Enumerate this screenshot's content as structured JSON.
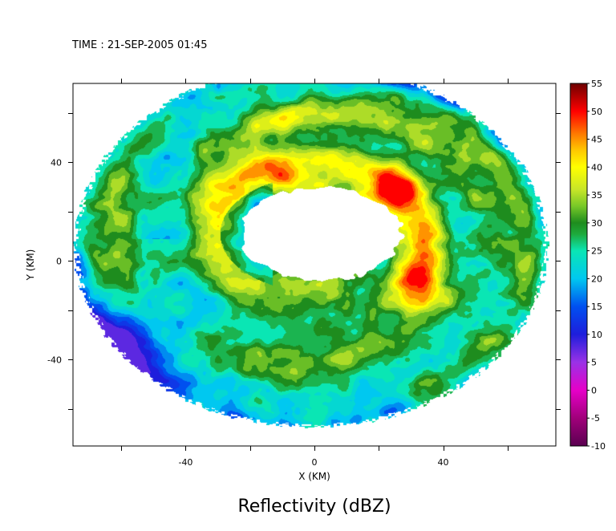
{
  "chart_data": {
    "type": "heatmap",
    "time_label": "TIME : 21-SEP-2005 01:45",
    "title": "Reflectivity (dBZ)",
    "xlabel": "X (KM)",
    "ylabel": "Y (KM)",
    "xlim": [
      -75,
      75
    ],
    "ylim": [
      -75,
      72
    ],
    "x_ticks": [
      -40,
      0,
      40
    ],
    "y_ticks": [
      40,
      0,
      -40
    ],
    "x_minor_ticks": [
      -60,
      -40,
      -20,
      0,
      20,
      40,
      60
    ],
    "y_minor_ticks": [
      60,
      40,
      20,
      0,
      -20,
      -40,
      -60
    ],
    "grid": false,
    "field": {
      "outer_radius_km": 73,
      "outer_center_km": [
        -1,
        6
      ],
      "inner_radius_x_km": 25,
      "inner_radius_y_km": 19,
      "inner_center_km": [
        2,
        11
      ],
      "features": [
        {
          "description": "inner eyewall ring",
          "radius_km": 34,
          "center_km": [
            2,
            9
          ],
          "peak_dbz": 45
        },
        {
          "description": "strong cell NE of eye",
          "x_km": 25,
          "y_km": 30,
          "peak_dbz": 48
        },
        {
          "description": "strong cell E of eye",
          "x_km": 30,
          "y_km": -8,
          "peak_dbz": 47
        },
        {
          "description": "strong cell N of eye",
          "x_km": -10,
          "y_km": 33,
          "peak_dbz": 46
        },
        {
          "description": "outer rainband",
          "radius_km": 52,
          "peak_dbz": 42
        },
        {
          "description": "low reflectivity SW quadrant",
          "x_km": -55,
          "y_km": -30,
          "min_dbz": 10
        }
      ]
    },
    "colorbar": {
      "ticks": [
        55,
        50,
        45,
        40,
        35,
        30,
        25,
        20,
        15,
        10,
        5,
        0,
        -5,
        -10
      ],
      "range": [
        -10,
        55
      ],
      "colors": [
        {
          "value": -10,
          "color": "#5a0050"
        },
        {
          "value": -5,
          "color": "#a0007a"
        },
        {
          "value": 0,
          "color": "#e600c8"
        },
        {
          "value": 5,
          "color": "#9a32e6"
        },
        {
          "value": 10,
          "color": "#1e1edc"
        },
        {
          "value": 15,
          "color": "#0050f0"
        },
        {
          "value": 20,
          "color": "#00c8f0"
        },
        {
          "value": 25,
          "color": "#0ae6b4"
        },
        {
          "value": 28,
          "color": "#1eaa3c"
        },
        {
          "value": 30,
          "color": "#1e8c1e"
        },
        {
          "value": 33,
          "color": "#78c828"
        },
        {
          "value": 36,
          "color": "#c8e628"
        },
        {
          "value": 40,
          "color": "#ffff00"
        },
        {
          "value": 43,
          "color": "#ffc800"
        },
        {
          "value": 46,
          "color": "#ff7800"
        },
        {
          "value": 50,
          "color": "#ff0000"
        },
        {
          "value": 55,
          "color": "#6e0000"
        }
      ]
    }
  }
}
